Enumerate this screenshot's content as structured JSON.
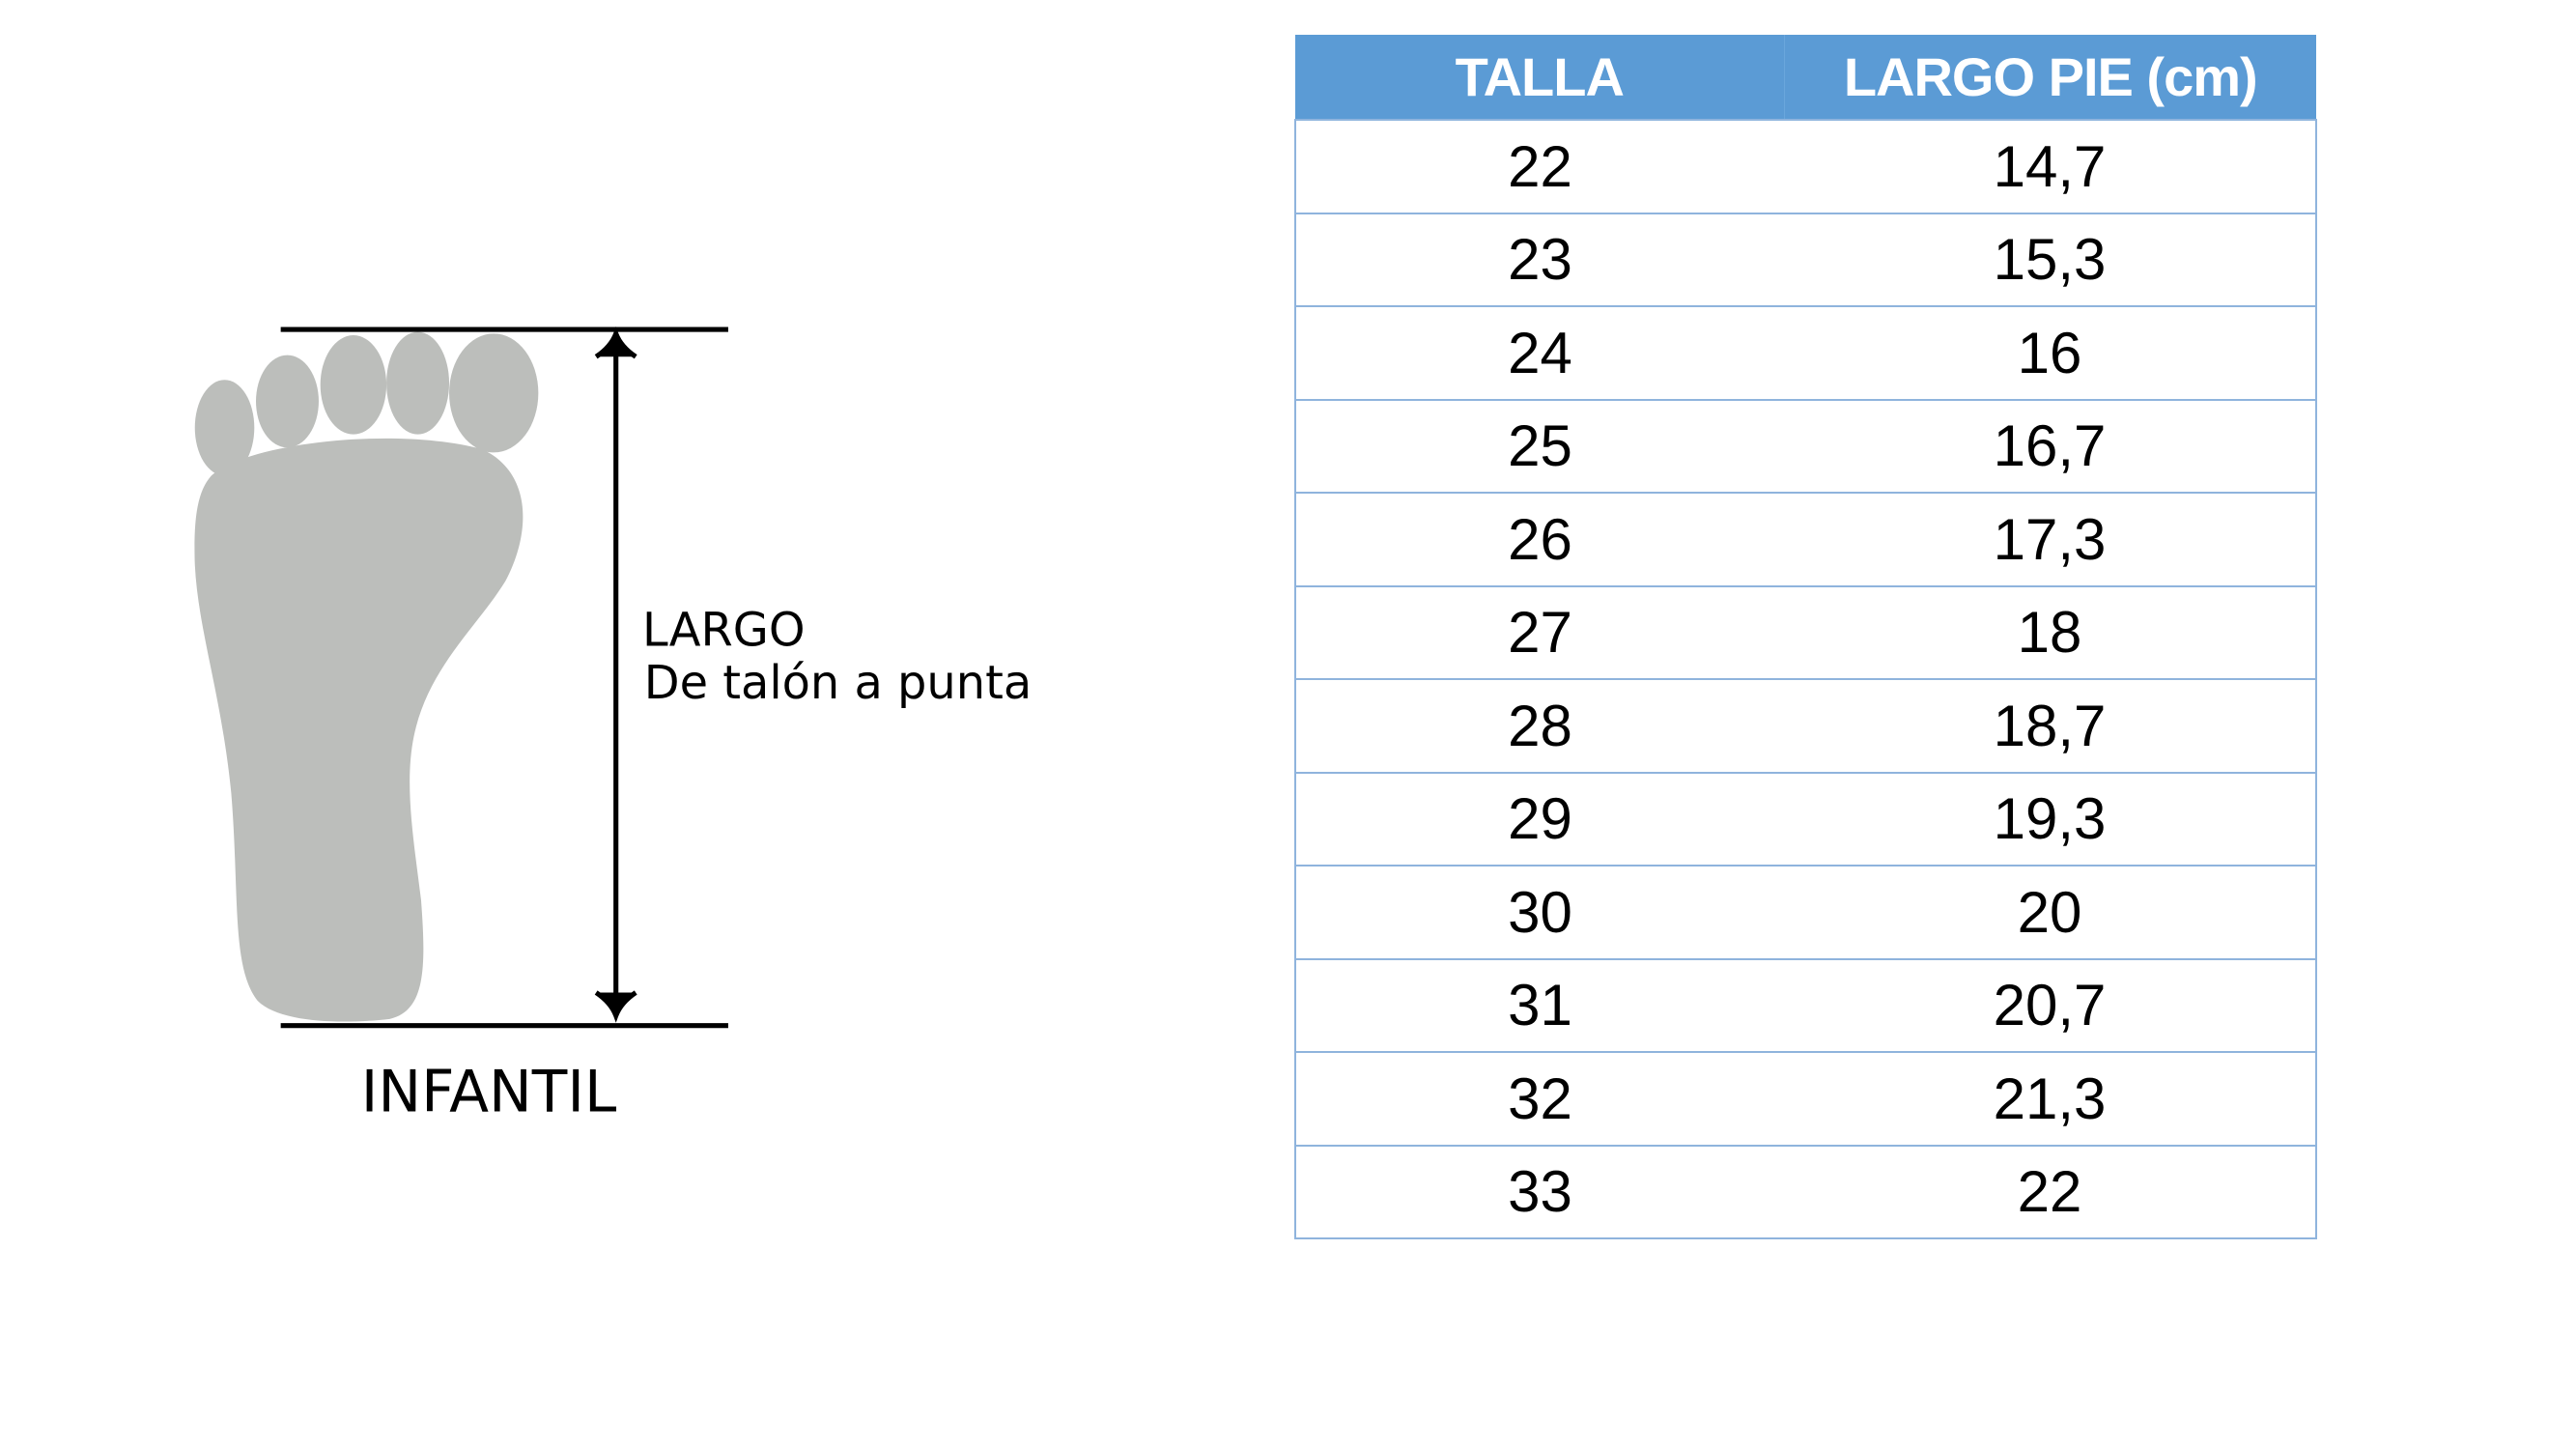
{
  "diagram": {
    "measure_label": "LARGO",
    "measure_desc": "De talón a punta",
    "category": "INFANTIL",
    "foot_color": "#bcbebb"
  },
  "table": {
    "header_color": "#5b9bd5",
    "headers": [
      "TALLA",
      "LARGO PIE (cm)"
    ],
    "rows": [
      [
        "22",
        "14,7"
      ],
      [
        "23",
        "15,3"
      ],
      [
        "24",
        "16"
      ],
      [
        "25",
        "16,7"
      ],
      [
        "26",
        "17,3"
      ],
      [
        "27",
        "18"
      ],
      [
        "28",
        "18,7"
      ],
      [
        "29",
        "19,3"
      ],
      [
        "30",
        "20"
      ],
      [
        "31",
        "20,7"
      ],
      [
        "32",
        "21,3"
      ],
      [
        "33",
        "22"
      ]
    ]
  }
}
